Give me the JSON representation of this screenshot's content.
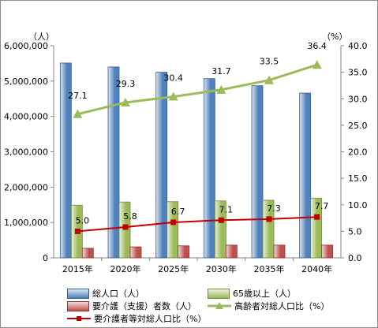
{
  "chart_data": {
    "type": "bar",
    "categories": [
      "2015年",
      "2020年",
      "2025年",
      "2030年",
      "2035年",
      "2040年"
    ],
    "y_left": {
      "unit": "（人）",
      "ylim": [
        0,
        6000000
      ],
      "ticks": [
        "0",
        "1,000,000",
        "2,000,000",
        "3,000,000",
        "4,000,000",
        "5,000,000",
        "6,000,000"
      ]
    },
    "y_right": {
      "unit": "（%）",
      "ylim": [
        0,
        40
      ],
      "ticks": [
        "0.0",
        "5.0",
        "10.0",
        "15.0",
        "20.0",
        "25.0",
        "30.0",
        "35.0",
        "40.0"
      ]
    },
    "series": [
      {
        "name": "総人口（人）",
        "type": "bar",
        "axis": "left",
        "values": [
          5510000,
          5400000,
          5250000,
          5070000,
          4870000,
          4660000
        ],
        "color": "#4f81bd"
      },
      {
        "name": "65歳以上（人）",
        "type": "bar",
        "axis": "left",
        "values": [
          1490000,
          1580000,
          1590000,
          1610000,
          1630000,
          1690000
        ],
        "color": "#9bbb59"
      },
      {
        "name": "要介護（支援）者数（人）",
        "type": "bar",
        "axis": "left",
        "values": [
          270000,
          310000,
          340000,
          360000,
          360000,
          360000
        ],
        "color": "#c0504d"
      },
      {
        "name": "高齢者対総人口比（%）",
        "type": "line",
        "axis": "right",
        "values": [
          27.1,
          29.3,
          30.4,
          31.7,
          33.5,
          36.4
        ],
        "labels": [
          "27.1",
          "29.3",
          "30.4",
          "31.7",
          "33.5",
          "36.4"
        ],
        "color": "#9bbb59"
      },
      {
        "name": "要介護者等対総人口比（%）",
        "type": "line",
        "axis": "right",
        "values": [
          5.0,
          5.8,
          6.7,
          7.1,
          7.3,
          7.7
        ],
        "labels": [
          "5.0",
          "5.8",
          "6.7",
          "7.1",
          "7.3",
          "7.7"
        ],
        "color": "#c00000"
      }
    ],
    "grid": false,
    "legend_position": "bottom"
  }
}
